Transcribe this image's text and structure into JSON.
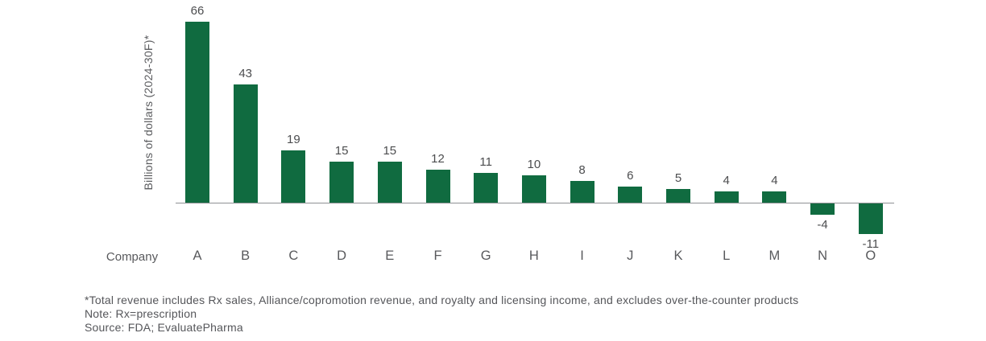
{
  "chart_data": {
    "type": "bar",
    "categories": [
      "A",
      "B",
      "C",
      "D",
      "E",
      "F",
      "G",
      "H",
      "I",
      "J",
      "K",
      "L",
      "M",
      "N",
      "O"
    ],
    "values": [
      66,
      43,
      19,
      15,
      15,
      12,
      11,
      10,
      8,
      6,
      5,
      4,
      4,
      -4,
      -11
    ],
    "title": "",
    "xlabel": "Company",
    "ylabel": "Billions of dollars (2024-30F)*",
    "ylim": [
      -15,
      70
    ],
    "grid": false,
    "legend": "none",
    "bar_color": "#106b40"
  },
  "footnotes": {
    "line1": "*Total revenue includes Rx sales, Alliance/copromotion revenue, and royalty and licensing income, and excludes over-the-counter products",
    "line2": "Note: Rx=prescription",
    "line3": "Source: FDA; EvaluatePharma"
  }
}
